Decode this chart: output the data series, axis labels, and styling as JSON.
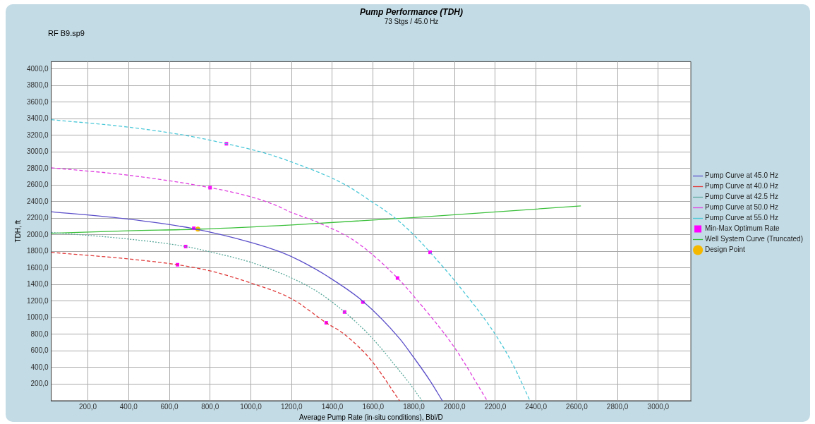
{
  "chart_data": {
    "type": "line",
    "title": "Pump Performance (TDH)",
    "subtitle": "73 Stgs / 45.0 Hz",
    "xlabel": "Average Pump Rate (in-situ conditions), Bbl/D",
    "ylabel": "TDH, ft",
    "annotations": [
      "RF B9.sp9"
    ],
    "xlim": [
      20,
      3160
    ],
    "ylim": [
      0,
      4090
    ],
    "xticks": [
      {
        "value": 200,
        "label": "200,0"
      },
      {
        "value": 400,
        "label": "400,0"
      },
      {
        "value": 600,
        "label": "600,0"
      },
      {
        "value": 800,
        "label": "800,0"
      },
      {
        "value": 1000,
        "label": "1000,0"
      },
      {
        "value": 1200,
        "label": "1200,0"
      },
      {
        "value": 1400,
        "label": "1400,0"
      },
      {
        "value": 1600,
        "label": "1600,0"
      },
      {
        "value": 1800,
        "label": "1800,0"
      },
      {
        "value": 2000,
        "label": "2000,0"
      },
      {
        "value": 2200,
        "label": "2200,0"
      },
      {
        "value": 2400,
        "label": "2400,0"
      },
      {
        "value": 2600,
        "label": "2600,0"
      },
      {
        "value": 2800,
        "label": "2800,0"
      },
      {
        "value": 3000,
        "label": "3000,0"
      }
    ],
    "yticks": [
      {
        "value": 200,
        "label": "200,0"
      },
      {
        "value": 400,
        "label": "400,0"
      },
      {
        "value": 600,
        "label": "600,0"
      },
      {
        "value": 800,
        "label": "800,0"
      },
      {
        "value": 1000,
        "label": "1000,0"
      },
      {
        "value": 1200,
        "label": "1200,0"
      },
      {
        "value": 1400,
        "label": "1400,0"
      },
      {
        "value": 1600,
        "label": "1600,0"
      },
      {
        "value": 1800,
        "label": "1800,0"
      },
      {
        "value": 2000,
        "label": "2000,0"
      },
      {
        "value": 2200,
        "label": "2200,0"
      },
      {
        "value": 2400,
        "label": "2400,0"
      },
      {
        "value": 2600,
        "label": "2600,0"
      },
      {
        "value": 2800,
        "label": "2800,0"
      },
      {
        "value": 3000,
        "label": "3000,0"
      },
      {
        "value": 3200,
        "label": "3200,0"
      },
      {
        "value": 3400,
        "label": "3400,0"
      },
      {
        "value": 3600,
        "label": "3600,0"
      },
      {
        "value": 3800,
        "label": "3800,0"
      },
      {
        "value": 4000,
        "label": "4000,0"
      }
    ],
    "grid": true,
    "legend": "right",
    "series": [
      {
        "name": "Pump Curve at 45.0 Hz",
        "color": "#5b4fc9",
        "line_style": "solid",
        "marker": "none",
        "x": [
          20,
          400,
          710,
          1000,
          1150,
          1240,
          1370,
          1550,
          1730,
          1800,
          1880,
          1940
        ],
        "values": [
          2280,
          2190,
          2080,
          1910,
          1790,
          1690,
          1510,
          1200,
          750,
          520,
          240,
          0
        ]
      },
      {
        "name": "Pump Curve at 40.0 Hz",
        "color": "#e03a3a",
        "line_style": "dashed",
        "marker": "none",
        "x": [
          20,
          400,
          640,
          810,
          1000,
          1200,
          1370,
          1460,
          1590,
          1730
        ],
        "values": [
          1790,
          1710,
          1640,
          1560,
          1420,
          1230,
          940,
          800,
          490,
          0
        ]
      },
      {
        "name": "Pump Curve at 42.5 Hz",
        "color": "#5aa89a",
        "line_style": "dotted",
        "marker": "none",
        "x": [
          20,
          400,
          680,
          810,
          1000,
          1200,
          1330,
          1460,
          1590,
          1720,
          1800,
          1840
        ],
        "values": [
          2030,
          1950,
          1860,
          1790,
          1670,
          1480,
          1310,
          1070,
          770,
          390,
          140,
          0
        ]
      },
      {
        "name": "Pump Curve at 50.0 Hz",
        "color": "#e040e0",
        "line_style": "dashed",
        "marker": "none",
        "x": [
          20,
          400,
          800,
          1000,
          1120,
          1200,
          1330,
          1520,
          1720,
          1800,
          2000,
          2160
        ],
        "values": [
          2810,
          2720,
          2570,
          2460,
          2360,
          2270,
          2150,
          1910,
          1480,
          1260,
          640,
          0
        ]
      },
      {
        "name": "Pump Curve at 55.0 Hz",
        "color": "#4cc8d8",
        "line_style": "dashed",
        "marker": "none",
        "x": [
          20,
          400,
          680,
          880,
          1050,
          1200,
          1460,
          1600,
          1700,
          1800,
          1880,
          2010,
          2200,
          2290,
          2370
        ],
        "values": [
          3390,
          3300,
          3200,
          3100,
          3000,
          2880,
          2610,
          2390,
          2220,
          2000,
          1790,
          1420,
          800,
          420,
          0
        ]
      },
      {
        "name": "Min-Max Optimum Rate",
        "type": "scatter",
        "color": "#ff00ff",
        "marker": "square",
        "x": [
          720,
          1550,
          640,
          1370,
          680,
          1460,
          800,
          1720,
          880,
          1880
        ],
        "values": [
          2080,
          1190,
          1640,
          940,
          1860,
          1070,
          2570,
          1480,
          3100,
          1790
        ]
      },
      {
        "name": "Well System Curve (Truncated)",
        "color": "#3cc03c",
        "line_style": "solid",
        "marker": "none",
        "x": [
          20,
          400,
          750,
          1200,
          1800,
          2620
        ],
        "values": [
          2020,
          2050,
          2070,
          2120,
          2210,
          2350
        ]
      },
      {
        "name": "Design Point",
        "type": "scatter",
        "color": "#f5b800",
        "marker": "circle",
        "x": [
          740
        ],
        "values": [
          2070
        ]
      }
    ]
  }
}
